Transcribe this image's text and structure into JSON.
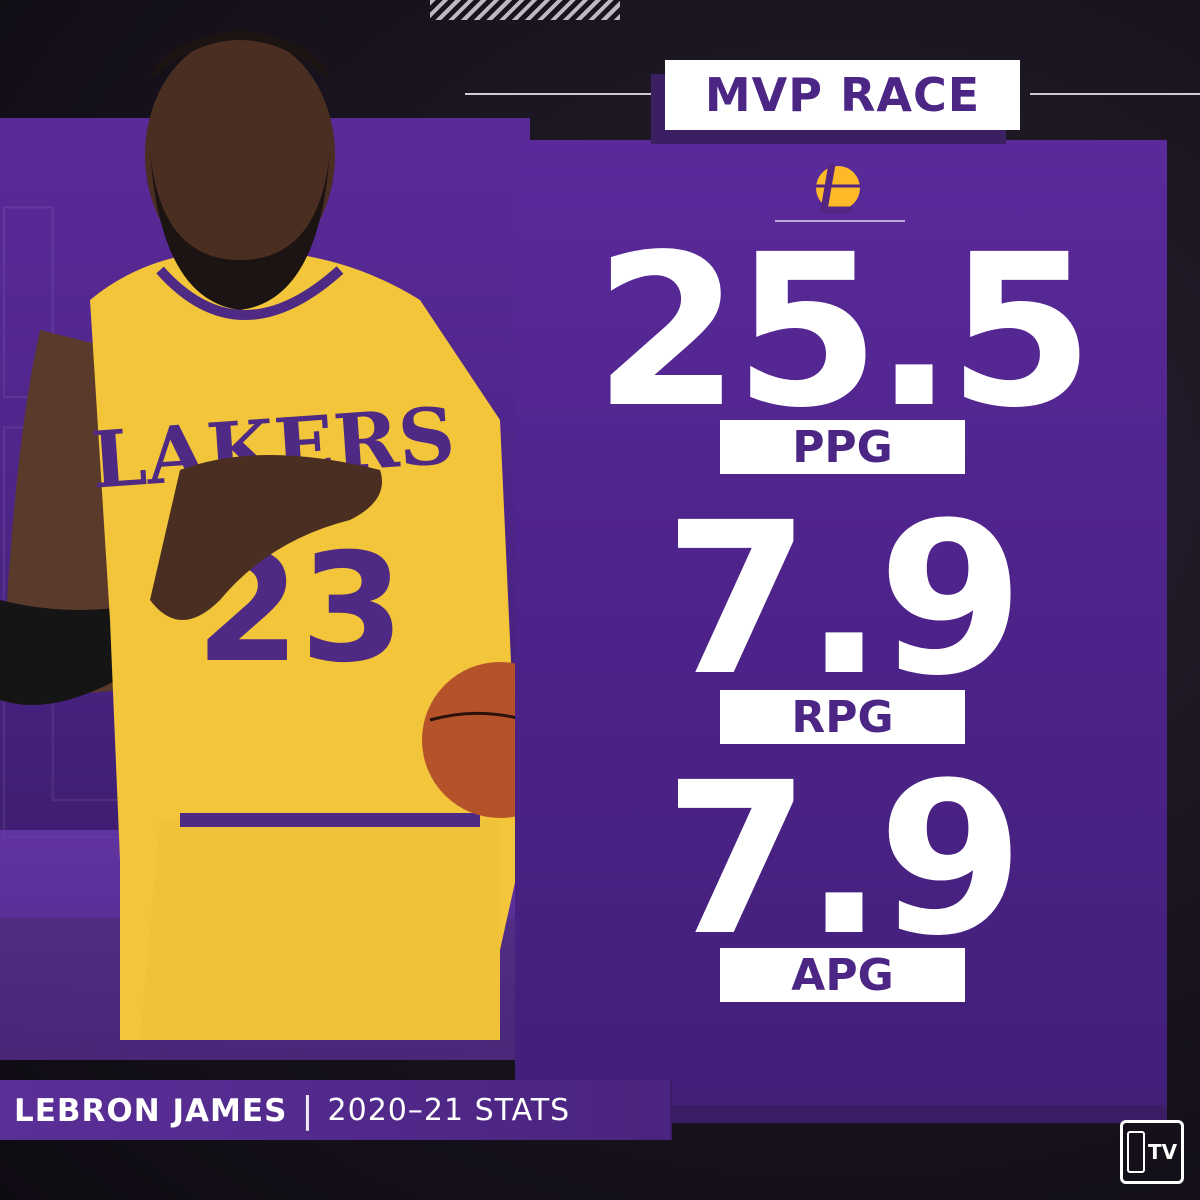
{
  "header": {
    "title": "MVP RACE"
  },
  "colors": {
    "purple": "#552583",
    "gold": "#FDB927",
    "white": "#FFFFFF"
  },
  "team_logo_icon": "lakers-logo-icon",
  "stats": [
    {
      "value": "25.5",
      "label": "PPG"
    },
    {
      "value": "7.9",
      "label": "RPG"
    },
    {
      "value": "7.9",
      "label": "APG"
    }
  ],
  "footer": {
    "player_name": "LEBRON JAMES",
    "separator": "|",
    "season": "2020–21 STATS"
  },
  "broadcaster_icon": "nba-tv-logo-icon",
  "broadcaster_text": "TV"
}
